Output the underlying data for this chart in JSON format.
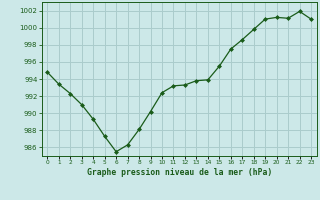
{
  "x": [
    0,
    1,
    2,
    3,
    4,
    5,
    6,
    7,
    8,
    9,
    10,
    11,
    12,
    13,
    14,
    15,
    16,
    17,
    18,
    19,
    20,
    21,
    22,
    23
  ],
  "y": [
    994.8,
    993.4,
    992.3,
    991.0,
    989.3,
    987.3,
    985.5,
    986.3,
    988.1,
    990.2,
    992.4,
    993.2,
    993.3,
    993.8,
    993.9,
    995.5,
    997.5,
    998.6,
    999.8,
    1001.0,
    1001.2,
    1001.1,
    1001.9,
    1001.0
  ],
  "line_color": "#1a5c1a",
  "marker_color": "#1a5c1a",
  "bg_color": "#cce8e8",
  "grid_color": "#aacccc",
  "ylabel_values": [
    986,
    988,
    990,
    992,
    994,
    996,
    998,
    1000,
    1002
  ],
  "xlabel_values": [
    0,
    1,
    2,
    3,
    4,
    5,
    6,
    7,
    8,
    9,
    10,
    11,
    12,
    13,
    14,
    15,
    16,
    17,
    18,
    19,
    20,
    21,
    22,
    23
  ],
  "xlabel": "Graphe pression niveau de la mer (hPa)",
  "ylim": [
    985.0,
    1003.0
  ],
  "xlim": [
    -0.5,
    23.5
  ]
}
